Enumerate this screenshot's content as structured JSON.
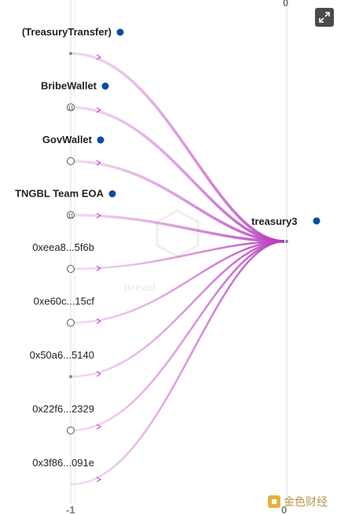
{
  "axis": {
    "top_tick": "0",
    "bottom_left_tick": "-1",
    "bottom_right_tick": "0"
  },
  "watermark_text": "bread",
  "target": {
    "label": "treasury3",
    "color": "#0b4ea2"
  },
  "sources": [
    {
      "label": "(TreasuryTransfer)",
      "bold": true,
      "marker": "dot",
      "count": "",
      "has_blue_dot": true
    },
    {
      "label": "BribeWallet",
      "bold": true,
      "marker": "counter",
      "count": "11",
      "has_blue_dot": true
    },
    {
      "label": "GovWallet",
      "bold": true,
      "marker": "circle",
      "count": "",
      "has_blue_dot": true
    },
    {
      "label": "TNGBL Team EOA",
      "bold": true,
      "marker": "counter",
      "count": "11",
      "has_blue_dot": true
    },
    {
      "label": "0xeea8...5f6b",
      "bold": false,
      "marker": "circle",
      "count": "",
      "has_blue_dot": false
    },
    {
      "label": "0xe60c...15cf",
      "bold": false,
      "marker": "circle",
      "count": "",
      "has_blue_dot": false
    },
    {
      "label": "0x50a6...5140",
      "bold": false,
      "marker": "dot",
      "count": "",
      "has_blue_dot": false
    },
    {
      "label": "0x22f6...2329",
      "bold": false,
      "marker": "circle",
      "count": "",
      "has_blue_dot": false
    },
    {
      "label": "0x3f86...091e",
      "bold": false,
      "marker": "none",
      "count": "",
      "has_blue_dot": false
    }
  ],
  "colors": {
    "edge": "#c04fc4",
    "node_dot": "#0b4ea2",
    "axis_line": "#d8d8d8"
  },
  "icons": {
    "expand": "expand-icon",
    "brand": "brand-logo-icon"
  },
  "brand": {
    "name": "金色财经"
  }
}
